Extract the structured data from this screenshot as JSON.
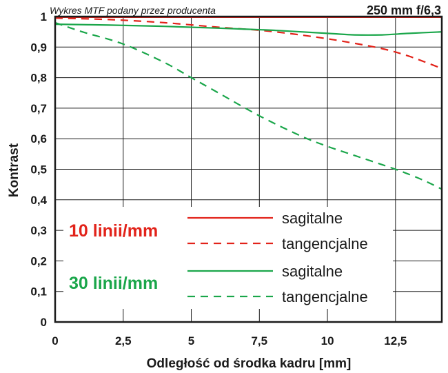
{
  "chart_data": {
    "type": "line",
    "title": "Wykres MTF podany przez producenta",
    "lens": "250 mm f/6,3",
    "xlabel": "Odległość od środka kadru [mm]",
    "ylabel": "Kontrast",
    "xlim": [
      0,
      14.2
    ],
    "ylim": [
      0,
      1
    ],
    "xticks": [
      {
        "value": 0,
        "label": "0"
      },
      {
        "value": 2.5,
        "label": "2,5"
      },
      {
        "value": 5,
        "label": "5"
      },
      {
        "value": 7.5,
        "label": "7,5"
      },
      {
        "value": 10,
        "label": "10"
      },
      {
        "value": 12.5,
        "label": "12,5"
      }
    ],
    "yticks": [
      {
        "value": 0,
        "label": "0"
      },
      {
        "value": 0.1,
        "label": "0,1"
      },
      {
        "value": 0.2,
        "label": "0,2"
      },
      {
        "value": 0.3,
        "label": "0,3"
      },
      {
        "value": 0.4,
        "label": "0,4"
      },
      {
        "value": 0.5,
        "label": "0,5"
      },
      {
        "value": 0.6,
        "label": "0,6"
      },
      {
        "value": 0.7,
        "label": "0,7"
      },
      {
        "value": 0.8,
        "label": "0,8"
      },
      {
        "value": 0.9,
        "label": "0,9"
      },
      {
        "value": 1,
        "label": "1"
      }
    ],
    "grid": true,
    "legend": {
      "placement": "lower-left",
      "groups": [
        {
          "label": "10 linii/mm",
          "color": "#e2231a",
          "items": [
            "sagitalne",
            "tangencjalne"
          ]
        },
        {
          "label": "30 linii/mm",
          "color": "#1aa64a",
          "items": [
            "sagitalne",
            "tangencjalne"
          ]
        }
      ]
    },
    "series": [
      {
        "group": "10 linii/mm",
        "name": "sagitalne",
        "color": "#e2231a",
        "dash": false,
        "x": [
          0,
          2,
          4,
          6,
          8,
          10,
          12,
          14.2
        ],
        "y": [
          0.998,
          0.998,
          0.998,
          0.998,
          0.998,
          0.998,
          0.998,
          0.998
        ]
      },
      {
        "group": "10 linii/mm",
        "name": "tangencjalne",
        "color": "#e2231a",
        "dash": true,
        "x": [
          0,
          2,
          4,
          6,
          7.5,
          9,
          10.5,
          12,
          13,
          14.2
        ],
        "y": [
          0.995,
          0.99,
          0.98,
          0.965,
          0.955,
          0.94,
          0.92,
          0.895,
          0.87,
          0.83
        ]
      },
      {
        "group": "30 linii/mm",
        "name": "sagitalne",
        "color": "#1aa64a",
        "dash": false,
        "x": [
          0,
          2,
          4,
          6,
          8,
          10,
          11,
          12,
          13,
          14.2
        ],
        "y": [
          0.975,
          0.972,
          0.968,
          0.962,
          0.955,
          0.945,
          0.94,
          0.94,
          0.945,
          0.95
        ]
      },
      {
        "group": "30 linii/mm",
        "name": "tangencjalne",
        "color": "#1aa64a",
        "dash": true,
        "x": [
          0,
          1,
          2.5,
          4,
          5,
          6,
          7.5,
          9,
          10,
          11,
          12.5,
          13.5,
          14.2
        ],
        "y": [
          0.98,
          0.95,
          0.91,
          0.85,
          0.8,
          0.75,
          0.675,
          0.61,
          0.575,
          0.545,
          0.5,
          0.465,
          0.435
        ]
      }
    ]
  }
}
